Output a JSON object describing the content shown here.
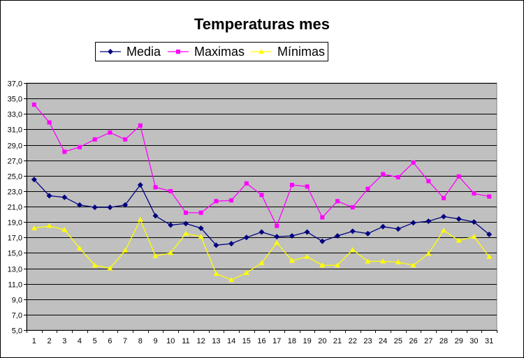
{
  "chart_data": {
    "type": "line",
    "title": "Temperaturas mes",
    "xlabel": "",
    "ylabel": "",
    "x": [
      "1",
      "2",
      "3",
      "4",
      "5",
      "6",
      "7",
      "8",
      "9",
      "10",
      "11",
      "12",
      "13",
      "14",
      "15",
      "16",
      "17",
      "18",
      "19",
      "20",
      "21",
      "22",
      "23",
      "24",
      "25",
      "26",
      "27",
      "28",
      "29",
      "30",
      "31"
    ],
    "ylim": [
      5.0,
      37.0
    ],
    "yticks": [
      "5,0",
      "7,0",
      "9,0",
      "11,0",
      "13,0",
      "15,0",
      "17,0",
      "19,0",
      "21,0",
      "23,0",
      "25,0",
      "27,0",
      "29,0",
      "31,0",
      "33,0",
      "35,0",
      "37,0"
    ],
    "grid": true,
    "plot_background": "#c0c0c0",
    "legend_position": "top",
    "series": [
      {
        "name": "Media",
        "color": "#000080",
        "marker": "diamond",
        "values": [
          24.5,
          22.4,
          22.2,
          21.2,
          20.9,
          20.9,
          21.2,
          23.8,
          19.8,
          18.6,
          18.8,
          18.2,
          16.0,
          16.2,
          17.0,
          17.7,
          17.1,
          17.2,
          17.7,
          16.5,
          17.2,
          17.8,
          17.5,
          18.4,
          18.1,
          18.9,
          19.1,
          19.7,
          19.4,
          19.0,
          17.4
        ]
      },
      {
        "name": "Maximas",
        "color": "#ff00ff",
        "marker": "square",
        "values": [
          34.2,
          31.9,
          28.1,
          28.7,
          29.7,
          30.6,
          29.7,
          31.5,
          23.5,
          23.0,
          20.2,
          20.2,
          21.7,
          21.8,
          24.0,
          22.5,
          18.5,
          23.8,
          23.6,
          19.6,
          21.7,
          20.9,
          23.3,
          25.2,
          24.8,
          26.7,
          24.3,
          22.1,
          24.9,
          22.7,
          22.3
        ]
      },
      {
        "name": "Mínimas",
        "color": "#ffff00",
        "marker": "triangle",
        "values": [
          18.2,
          18.5,
          18.0,
          15.6,
          13.4,
          13.0,
          15.3,
          19.3,
          14.6,
          15.0,
          17.5,
          17.1,
          12.3,
          11.5,
          12.4,
          13.7,
          16.3,
          14.0,
          14.5,
          13.4,
          13.4,
          15.4,
          13.9,
          13.9,
          13.8,
          13.4,
          14.9,
          17.9,
          16.6,
          17.1,
          14.5
        ]
      }
    ]
  }
}
